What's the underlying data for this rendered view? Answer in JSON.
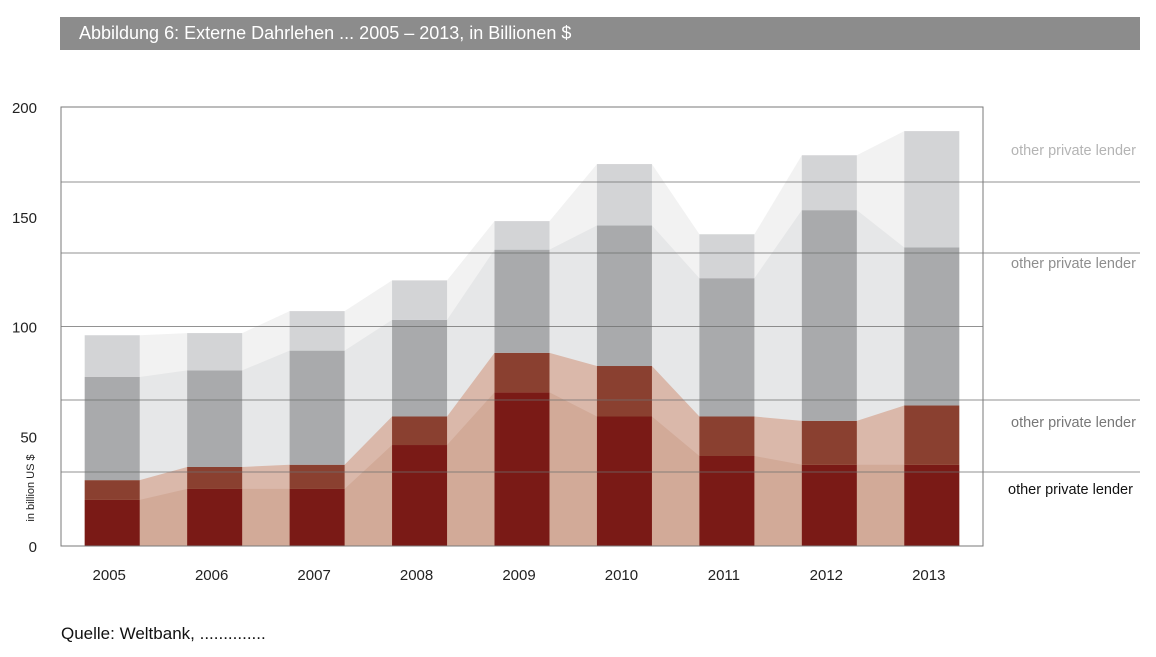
{
  "title": "Abbildung 6: Externe Dahrlehen ... 2005 – 2013, in Billionen $",
  "source": "Quelle: Weltbank, ..............",
  "chart_data": {
    "type": "bar",
    "stacked": true,
    "categories": [
      "2005",
      "2006",
      "2007",
      "2008",
      "2009",
      "2010",
      "2011",
      "2012",
      "2013"
    ],
    "ylabel": "in billion US $",
    "ylim": [
      0,
      200
    ],
    "yticks": [
      0,
      50,
      100,
      150,
      200
    ],
    "grid": true,
    "series": [
      {
        "name": "other private lender",
        "color": "#7a1a16",
        "values": [
          21,
          26,
          26,
          46,
          70,
          59,
          41,
          37,
          37
        ]
      },
      {
        "name": "other private lender",
        "color": "#8a4030",
        "values": [
          9,
          10,
          11,
          13,
          18,
          23,
          18,
          20,
          27
        ]
      },
      {
        "name": "other private lender",
        "color": "#a9aaac",
        "values": [
          47,
          44,
          52,
          44,
          47,
          64,
          63,
          96,
          72
        ]
      },
      {
        "name": "other private lender",
        "color": "#d3d4d6",
        "values": [
          19,
          17,
          18,
          18,
          13,
          28,
          20,
          25,
          53
        ]
      }
    ],
    "area_colors": [
      "#d2aa98",
      "#dab8aa",
      "#e6e7e8",
      "#f2f2f2"
    ]
  }
}
